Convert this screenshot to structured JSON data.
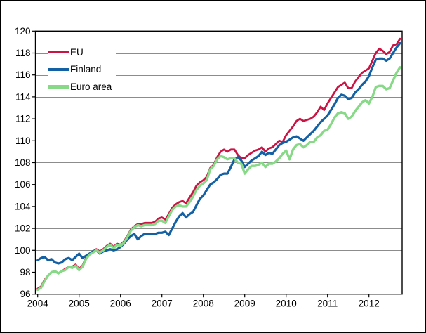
{
  "chart_data": {
    "type": "line",
    "title": "",
    "x_unit": "month",
    "x_start": "2004-01",
    "x_end": "2012-10",
    "x_tick_labels": [
      "2004",
      "2005",
      "2006",
      "2007",
      "2008",
      "2009",
      "2010",
      "2011",
      "2012"
    ],
    "ylim": [
      96,
      120
    ],
    "y_tick_step": 2,
    "y_tick_labels": [
      "96",
      "98",
      "100",
      "102",
      "104",
      "106",
      "108",
      "110",
      "112",
      "114",
      "116",
      "118",
      "120"
    ],
    "grid": "horizontal",
    "legend_position": "top-left-inside",
    "series": [
      {
        "name": "EU",
        "color": "#cc1444",
        "values": [
          96.5,
          96.7,
          97.3,
          97.7,
          98.0,
          98.1,
          97.9,
          98.1,
          98.3,
          98.5,
          98.5,
          98.7,
          98.3,
          98.6,
          99.3,
          99.7,
          99.9,
          100.1,
          99.9,
          100.1,
          100.4,
          100.6,
          100.3,
          100.6,
          100.5,
          100.8,
          101.3,
          101.9,
          102.2,
          102.4,
          102.4,
          102.5,
          102.5,
          102.5,
          102.6,
          102.9,
          103.0,
          102.8,
          103.3,
          103.9,
          104.2,
          104.4,
          104.5,
          104.3,
          104.8,
          105.3,
          105.9,
          106.2,
          106.4,
          106.7,
          107.5,
          107.8,
          108.5,
          109.0,
          109.2,
          109.0,
          109.2,
          109.2,
          108.7,
          108.4,
          108.4,
          108.7,
          108.9,
          109.1,
          109.2,
          109.4,
          109.0,
          109.3,
          109.4,
          109.7,
          110.0,
          109.9,
          110.5,
          110.9,
          111.3,
          111.8,
          112.0,
          111.8,
          111.9,
          112.0,
          112.2,
          112.6,
          113.1,
          112.8,
          113.4,
          113.9,
          114.4,
          114.9,
          115.1,
          115.3,
          114.8,
          114.8,
          115.4,
          115.8,
          116.2,
          116.4,
          116.6,
          117.3,
          118.0,
          118.4,
          118.2,
          117.9,
          118.1,
          118.7,
          118.8,
          119.3
        ]
      },
      {
        "name": "Finland",
        "color": "#1360a4",
        "values": [
          99.1,
          99.3,
          99.4,
          99.1,
          99.2,
          98.9,
          98.8,
          98.9,
          99.2,
          99.3,
          99.1,
          99.4,
          99.7,
          99.3,
          99.5,
          99.7,
          99.9,
          100.0,
          99.7,
          99.9,
          100.0,
          100.1,
          100.0,
          100.1,
          100.3,
          100.6,
          101.0,
          101.3,
          101.5,
          101.0,
          101.3,
          101.5,
          101.5,
          101.5,
          101.5,
          101.6,
          101.6,
          101.7,
          101.4,
          102.0,
          102.6,
          103.1,
          103.4,
          103.0,
          103.3,
          103.5,
          104.1,
          104.7,
          105.0,
          105.5,
          106.0,
          106.2,
          106.5,
          106.9,
          107.0,
          107.0,
          107.6,
          108.3,
          108.5,
          108.2,
          107.6,
          107.9,
          108.2,
          108.4,
          108.6,
          109.0,
          108.7,
          108.9,
          108.8,
          109.2,
          109.6,
          109.8,
          109.9,
          110.1,
          110.3,
          110.4,
          110.2,
          110.0,
          110.3,
          110.6,
          110.9,
          111.3,
          111.7,
          112.0,
          112.3,
          112.8,
          113.3,
          113.9,
          114.2,
          114.1,
          113.8,
          113.9,
          114.4,
          114.7,
          115.1,
          115.4,
          115.9,
          116.7,
          117.4,
          117.5,
          117.5,
          117.3,
          117.5,
          118.0,
          118.5,
          118.9
        ]
      },
      {
        "name": "Euro area",
        "color": "#87d987",
        "values": [
          96.4,
          96.6,
          97.2,
          97.7,
          98.0,
          98.1,
          97.9,
          98.1,
          98.2,
          98.5,
          98.4,
          98.6,
          98.2,
          98.5,
          99.2,
          99.6,
          99.8,
          100.0,
          99.8,
          100.0,
          100.3,
          100.5,
          100.2,
          100.5,
          100.4,
          100.7,
          101.2,
          101.8,
          102.1,
          102.3,
          102.2,
          102.3,
          102.3,
          102.3,
          102.4,
          102.7,
          102.7,
          102.5,
          103.1,
          103.7,
          104.0,
          104.1,
          104.0,
          104.0,
          104.4,
          104.9,
          105.5,
          105.9,
          106.1,
          106.4,
          107.4,
          107.7,
          108.3,
          108.6,
          108.5,
          108.3,
          108.4,
          108.4,
          108.0,
          107.9,
          107.0,
          107.4,
          107.7,
          107.7,
          107.8,
          108.0,
          107.6,
          107.9,
          107.9,
          108.1,
          108.4,
          108.8,
          109.1,
          108.3,
          109.2,
          109.6,
          109.7,
          109.4,
          109.6,
          109.9,
          109.9,
          110.3,
          110.5,
          110.9,
          111.0,
          111.5,
          112.1,
          112.5,
          112.6,
          112.5,
          112.0,
          112.2,
          112.7,
          113.1,
          113.5,
          113.7,
          113.4,
          114.0,
          114.9,
          115.0,
          115.0,
          114.7,
          114.8,
          115.5,
          116.2,
          116.7
        ]
      }
    ]
  }
}
